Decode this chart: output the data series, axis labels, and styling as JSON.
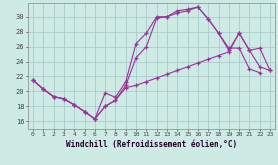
{
  "xlabel": "Windchill (Refroidissement éolien,°C)",
  "bg_color": "#cdeae4",
  "grid_color": "#aacccc",
  "line_color": "#993399",
  "xlim": [
    -0.5,
    23.5
  ],
  "ylim": [
    15.0,
    31.8
  ],
  "yticks": [
    16,
    18,
    20,
    22,
    24,
    26,
    28,
    30
  ],
  "xticks": [
    0,
    1,
    2,
    3,
    4,
    5,
    6,
    7,
    8,
    9,
    10,
    11,
    12,
    13,
    14,
    15,
    16,
    17,
    18,
    19,
    20,
    21,
    22,
    23
  ],
  "series1_x": [
    0,
    1,
    2,
    3,
    4,
    5,
    6,
    7,
    8,
    9,
    10,
    11,
    12,
    13,
    14,
    15,
    16,
    17,
    18,
    19,
    20,
    21,
    22
  ],
  "series1_y": [
    21.5,
    20.3,
    19.3,
    19.0,
    18.2,
    17.3,
    16.3,
    19.8,
    19.2,
    21.3,
    26.4,
    27.8,
    30.0,
    30.0,
    30.8,
    31.0,
    31.3,
    29.7,
    27.8,
    25.8,
    25.8,
    23.0,
    22.5
  ],
  "series2_x": [
    0,
    1,
    2,
    3,
    4,
    5,
    6,
    7,
    8,
    9,
    10,
    11,
    12,
    13,
    14,
    15,
    16,
    17,
    18,
    19,
    20,
    21,
    22,
    23
  ],
  "series2_y": [
    21.5,
    20.3,
    19.3,
    19.0,
    18.2,
    17.3,
    16.3,
    18.0,
    18.8,
    20.8,
    24.5,
    26.0,
    29.8,
    30.0,
    30.5,
    30.8,
    31.3,
    29.7,
    27.8,
    25.5,
    27.8,
    25.5,
    25.8,
    22.8
  ],
  "series3_x": [
    0,
    1,
    2,
    3,
    4,
    5,
    6,
    7,
    8,
    9,
    10,
    11,
    12,
    13,
    14,
    15,
    16,
    17,
    18,
    19,
    20,
    21,
    22,
    23
  ],
  "series3_y": [
    21.5,
    20.3,
    19.3,
    19.0,
    18.2,
    17.3,
    16.3,
    18.0,
    18.8,
    20.5,
    20.8,
    21.3,
    21.8,
    22.3,
    22.8,
    23.3,
    23.8,
    24.3,
    24.8,
    25.3,
    27.8,
    25.5,
    23.3,
    22.8
  ]
}
